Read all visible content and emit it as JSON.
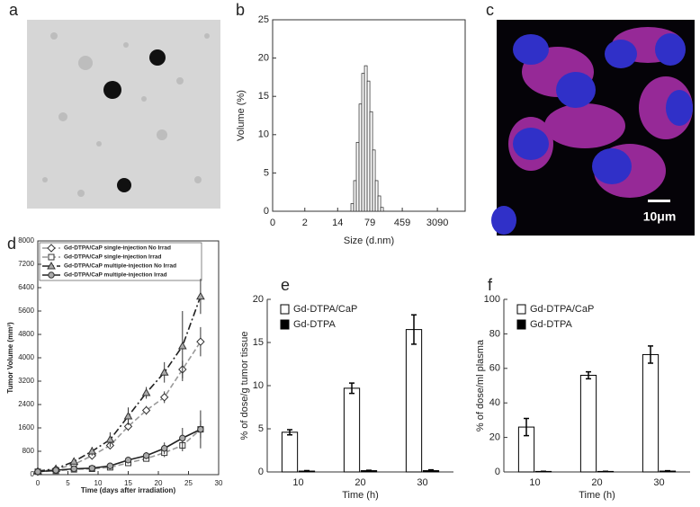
{
  "images": [
    {
      "label": "a"
    },
    {
      "label": "c",
      "scale_bar": "10μm"
    }
  ],
  "chart_data": [
    {
      "type": "histogram",
      "label": "b",
      "xlabel": "Size (d.nm)",
      "ylabel": "Volume (%)",
      "xscale": "log",
      "xlim": [
        0.4,
        14000
      ],
      "xticks": [
        {
          "value": 0.4,
          "label": "0"
        },
        {
          "value": 2.3,
          "label": "2"
        },
        {
          "value": 13.7,
          "label": "14"
        },
        79,
        459,
        3090
      ],
      "ylim": [
        0,
        25
      ],
      "yticks": [
        0,
        5,
        10,
        15,
        20,
        25
      ],
      "bins": [
        28.2,
        32.7,
        37.8,
        43.8,
        50.7,
        58.8,
        68.1,
        78.8,
        91.3,
        105.7,
        122.4,
        141.8,
        164.2
      ],
      "values": [
        1,
        4,
        9,
        14,
        18,
        19,
        17,
        13,
        8,
        4,
        2,
        0.5
      ],
      "color": "#ffffff"
    },
    {
      "type": "line",
      "label": "d",
      "xlabel": "Time (days after irradiation)",
      "ylabel": "Tumor Volume (mm³)",
      "xlim": [
        0,
        30
      ],
      "xticks": [
        0,
        5,
        10,
        15,
        20,
        25,
        30
      ],
      "ylim": [
        0,
        8000
      ],
      "yticks": [
        0,
        800,
        1600,
        2400,
        3200,
        4000,
        4800,
        5600,
        6400,
        7200,
        8000
      ],
      "x": [
        0,
        3,
        6,
        9,
        12,
        15,
        18,
        21,
        24,
        27
      ],
      "series": [
        {
          "name": "Gd-DTPA/CaP single-injection No Irrad",
          "color": "#999999",
          "marker": "diamond",
          "marker_fill": "#ffffff",
          "dash": "6,3",
          "values": [
            100,
            180,
            350,
            650,
            1000,
            1650,
            2200,
            2650,
            3600,
            4550
          ],
          "errors": [
            30,
            40,
            60,
            80,
            100,
            150,
            150,
            200,
            300,
            500
          ]
        },
        {
          "name": "Gd-DTPA/CaP single-injection Irrad",
          "color": "#999999",
          "marker": "square",
          "marker_fill": "#ffffff",
          "dash": "6,3",
          "values": [
            100,
            130,
            180,
            200,
            250,
            400,
            550,
            750,
            1000,
            1550
          ],
          "errors": [
            20,
            30,
            30,
            40,
            50,
            80,
            100,
            150,
            200,
            300
          ]
        },
        {
          "name": "Gd-DTPA/CaP multiple-injection No Irrad",
          "color": "#222222",
          "marker": "triangle",
          "marker_fill": "#aaaaaa",
          "dash": "8,3,2,3",
          "values": [
            120,
            200,
            450,
            800,
            1200,
            2000,
            2800,
            3500,
            4400,
            6100
          ],
          "errors": [
            30,
            50,
            100,
            150,
            250,
            300,
            200,
            350,
            1200,
            600
          ]
        },
        {
          "name": "Gd-DTPA/CaP multiple-injection Irrad",
          "color": "#222222",
          "marker": "circle",
          "marker_fill": "#aaaaaa",
          "dash": "none",
          "values": [
            100,
            150,
            200,
            220,
            300,
            500,
            650,
            900,
            1250,
            1550
          ],
          "errors": [
            20,
            30,
            40,
            40,
            60,
            100,
            120,
            200,
            350,
            650
          ]
        }
      ]
    },
    {
      "type": "bar",
      "label": "e",
      "xlabel": "Time (h)",
      "ylabel": "% of dose/g tumor tissue",
      "categories": [
        "10",
        "20",
        "30"
      ],
      "ylim": [
        0,
        20
      ],
      "yticks": [
        0,
        5,
        10,
        15,
        20
      ],
      "series": [
        {
          "name": "Gd-DTPA/CaP",
          "color": "#ffffff",
          "values": [
            4.6,
            9.7,
            16.5
          ],
          "errors": [
            0.3,
            0.6,
            1.7
          ]
        },
        {
          "name": "Gd-DTPA",
          "color": "#000000",
          "values": [
            0.1,
            0.15,
            0.15
          ],
          "errors": [
            0.05,
            0.05,
            0.1
          ]
        }
      ]
    },
    {
      "type": "bar",
      "label": "f",
      "xlabel": "Time (h)",
      "ylabel": "% of dose/ml plasma",
      "categories": [
        "10",
        "20",
        "30"
      ],
      "ylim": [
        0,
        100
      ],
      "yticks": [
        0,
        20,
        40,
        60,
        80,
        100
      ],
      "series": [
        {
          "name": "Gd-DTPA/CaP",
          "color": "#ffffff",
          "values": [
            26,
            56,
            68
          ],
          "errors": [
            5,
            2,
            5
          ]
        },
        {
          "name": "Gd-DTPA",
          "color": "#000000",
          "values": [
            0.3,
            0.3,
            0.5
          ],
          "errors": [
            0.1,
            0.1,
            0.2
          ]
        }
      ]
    }
  ]
}
